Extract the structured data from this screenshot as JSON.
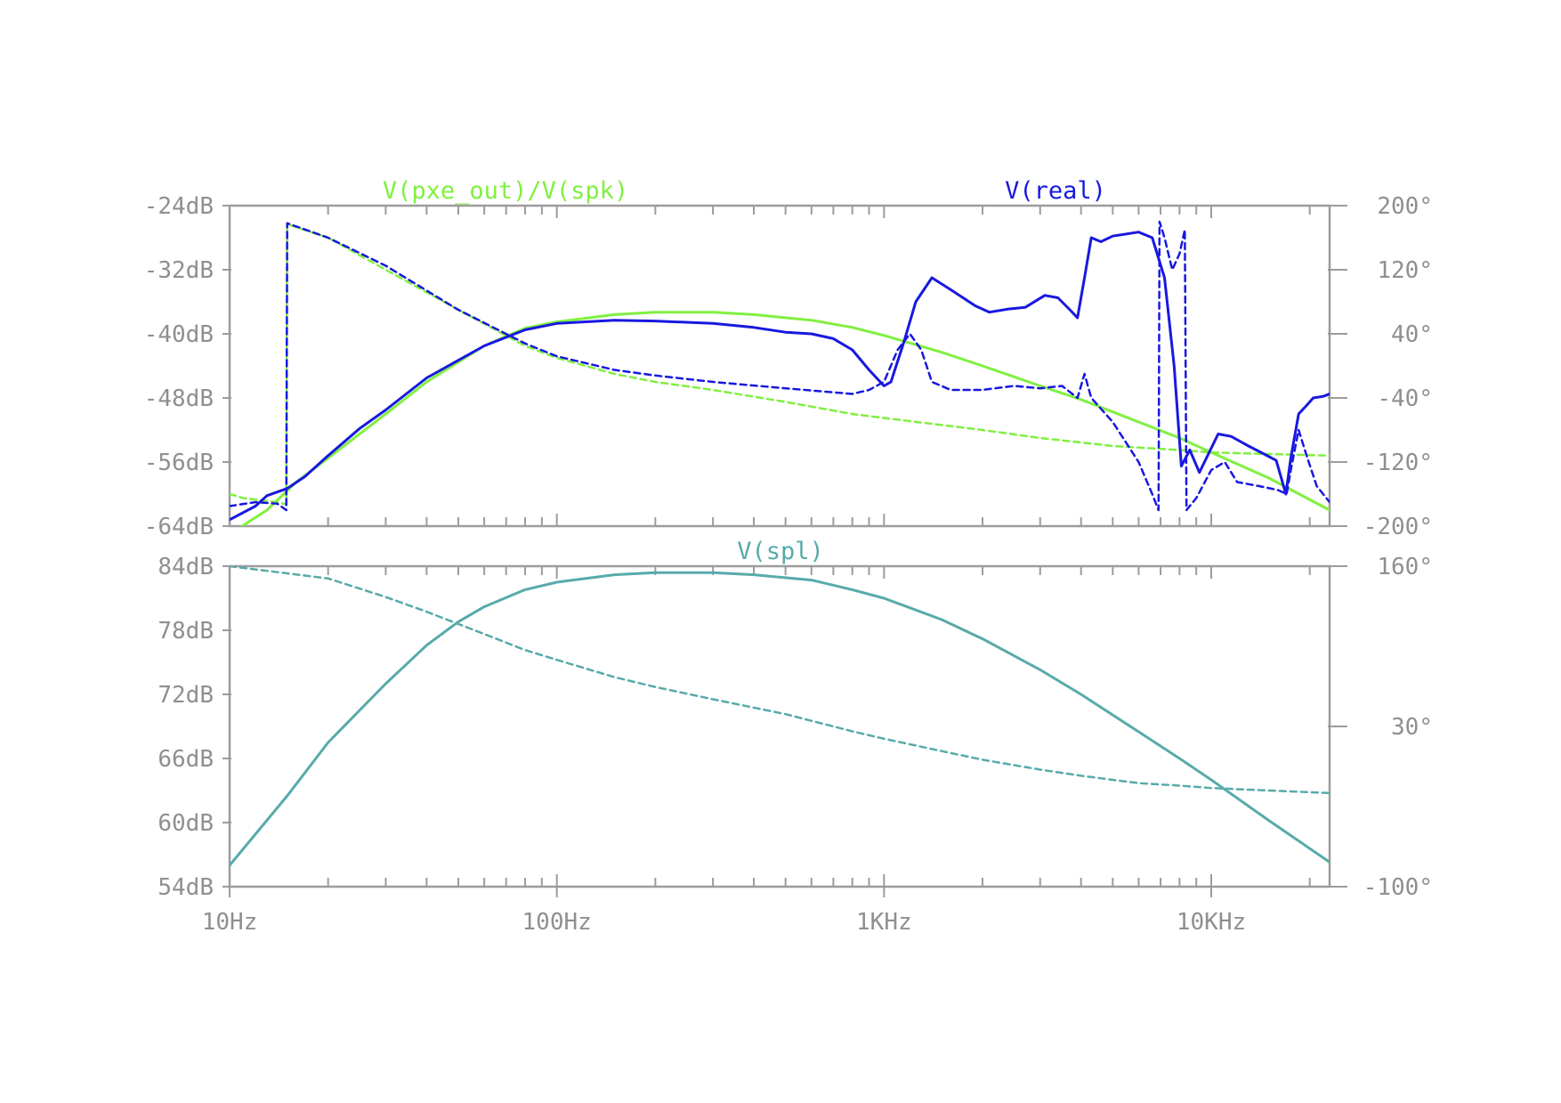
{
  "chart_data": [
    {
      "type": "line",
      "x_scale": "log",
      "xlim": [
        10,
        23000
      ],
      "x_ticks": [
        {
          "value": 10,
          "label": "10Hz"
        },
        {
          "value": 100,
          "label": "100Hz"
        },
        {
          "value": 1000,
          "label": "1KHz"
        },
        {
          "value": 10000,
          "label": "10KHz"
        }
      ],
      "ylim_left": [
        -64,
        -24
      ],
      "y_ticks_left": [
        {
          "value": -24,
          "label": "-24dB"
        },
        {
          "value": -32,
          "label": "-32dB"
        },
        {
          "value": -40,
          "label": "-40dB"
        },
        {
          "value": -48,
          "label": "-48dB"
        },
        {
          "value": -56,
          "label": "-56dB"
        },
        {
          "value": -64,
          "label": "-64dB"
        }
      ],
      "ylim_right": [
        -200,
        200
      ],
      "y_ticks_right": [
        {
          "value": 200,
          "label": "200°"
        },
        {
          "value": 120,
          "label": "120°"
        },
        {
          "value": 40,
          "label": "40°"
        },
        {
          "value": -40,
          "label": "-40°"
        },
        {
          "value": -120,
          "label": "-120°"
        },
        {
          "value": -200,
          "label": "-200°"
        }
      ],
      "grid": false,
      "series": [
        {
          "name": "V(pxe_out)/V(spk)",
          "color": "#80f040",
          "legend_position": "top-left",
          "magnitude_db": [
            [
              10,
              -65
            ],
            [
              13,
              -62
            ],
            [
              16,
              -58.5
            ],
            [
              20,
              -55.5
            ],
            [
              30,
              -50
            ],
            [
              40,
              -46
            ],
            [
              60,
              -41.5
            ],
            [
              80,
              -39.3
            ],
            [
              100,
              -38.5
            ],
            [
              150,
              -37.6
            ],
            [
              200,
              -37.3
            ],
            [
              300,
              -37.3
            ],
            [
              400,
              -37.6
            ],
            [
              600,
              -38.3
            ],
            [
              800,
              -39.2
            ],
            [
              1000,
              -40.2
            ],
            [
              1500,
              -42.3
            ],
            [
              2000,
              -44
            ],
            [
              3000,
              -46.5
            ],
            [
              4000,
              -48.2
            ],
            [
              6000,
              -51
            ],
            [
              8000,
              -53
            ],
            [
              10000,
              -54.8
            ],
            [
              15000,
              -58
            ],
            [
              23000,
              -62
            ]
          ],
          "phase_deg": [
            [
              10,
              -160
            ],
            [
              11,
              -165
            ],
            [
              14,
              -170
            ],
            [
              14.9,
              -173
            ],
            [
              15,
              177
            ],
            [
              20,
              160
            ],
            [
              30,
              120
            ],
            [
              50,
              70
            ],
            [
              80,
              25
            ],
            [
              100,
              10
            ],
            [
              150,
              -10
            ],
            [
              200,
              -20
            ],
            [
              300,
              -30
            ],
            [
              500,
              -45
            ],
            [
              800,
              -60
            ],
            [
              1000,
              -65
            ],
            [
              2000,
              -80
            ],
            [
              3000,
              -90
            ],
            [
              5000,
              -100
            ],
            [
              8000,
              -105
            ],
            [
              10000,
              -108
            ],
            [
              15000,
              -110
            ],
            [
              23000,
              -112
            ]
          ]
        },
        {
          "name": "V(real)",
          "color": "#1818e0",
          "legend_position": "top-right",
          "magnitude_db": [
            [
              10,
              -63.2
            ],
            [
              12,
              -61.5
            ],
            [
              13,
              -60.2
            ],
            [
              15,
              -59.3
            ],
            [
              17,
              -57.8
            ],
            [
              20,
              -55.2
            ],
            [
              25,
              -51.8
            ],
            [
              30,
              -49.5
            ],
            [
              40,
              -45.5
            ],
            [
              60,
              -41.5
            ],
            [
              80,
              -39.5
            ],
            [
              100,
              -38.7
            ],
            [
              150,
              -38.3
            ],
            [
              200,
              -38.4
            ],
            [
              300,
              -38.7
            ],
            [
              400,
              -39.2
            ],
            [
              500,
              -39.8
            ],
            [
              600,
              -40
            ],
            [
              700,
              -40.6
            ],
            [
              800,
              -42
            ],
            [
              900,
              -44.5
            ],
            [
              1000,
              -46.5
            ],
            [
              1050,
              -46
            ],
            [
              1150,
              -41
            ],
            [
              1250,
              -36
            ],
            [
              1400,
              -33
            ],
            [
              1600,
              -34.5
            ],
            [
              1900,
              -36.5
            ],
            [
              2100,
              -37.3
            ],
            [
              2400,
              -36.9
            ],
            [
              2700,
              -36.7
            ],
            [
              3100,
              -35.2
            ],
            [
              3400,
              -35.5
            ],
            [
              3700,
              -37
            ],
            [
              3900,
              -38
            ],
            [
              4100,
              -33
            ],
            [
              4300,
              -28
            ],
            [
              4600,
              -28.5
            ],
            [
              5000,
              -27.8
            ],
            [
              6000,
              -27.3
            ],
            [
              6600,
              -28
            ],
            [
              7200,
              -33
            ],
            [
              7700,
              -44
            ],
            [
              8100,
              -56.5
            ],
            [
              8600,
              -54.5
            ],
            [
              9200,
              -57.3
            ],
            [
              9800,
              -55
            ],
            [
              10500,
              -52.5
            ],
            [
              11500,
              -52.8
            ],
            [
              13000,
              -54
            ],
            [
              14500,
              -55
            ],
            [
              15800,
              -55.8
            ],
            [
              16500,
              -58.5
            ],
            [
              16900,
              -60
            ],
            [
              17500,
              -55.5
            ],
            [
              18500,
              -50
            ],
            [
              19500,
              -49
            ],
            [
              20500,
              -48
            ],
            [
              22000,
              -47.8
            ],
            [
              23000,
              -47.5
            ]
          ],
          "phase_deg": [
            [
              10,
              -175
            ],
            [
              12,
              -170
            ],
            [
              14,
              -172
            ],
            [
              14.9,
              -180
            ],
            [
              15,
              178
            ],
            [
              20,
              160
            ],
            [
              30,
              125
            ],
            [
              50,
              70
            ],
            [
              80,
              28
            ],
            [
              100,
              12
            ],
            [
              150,
              -5
            ],
            [
              200,
              -12
            ],
            [
              300,
              -20
            ],
            [
              500,
              -28
            ],
            [
              800,
              -35
            ],
            [
              900,
              -30
            ],
            [
              1000,
              -20
            ],
            [
              1100,
              20
            ],
            [
              1200,
              40
            ],
            [
              1300,
              20
            ],
            [
              1400,
              -20
            ],
            [
              1600,
              -30
            ],
            [
              2000,
              -30
            ],
            [
              2500,
              -25
            ],
            [
              3000,
              -28
            ],
            [
              3500,
              -25
            ],
            [
              3900,
              -40
            ],
            [
              4100,
              -10
            ],
            [
              4300,
              -40
            ],
            [
              5000,
              -70
            ],
            [
              6000,
              -120
            ],
            [
              6600,
              -160
            ],
            [
              6900,
              -180
            ],
            [
              6950,
              180
            ],
            [
              7200,
              160
            ],
            [
              7600,
              120
            ],
            [
              8000,
              140
            ],
            [
              8300,
              170
            ],
            [
              8400,
              -180
            ],
            [
              9000,
              -165
            ],
            [
              10000,
              -130
            ],
            [
              11000,
              -120
            ],
            [
              12000,
              -145
            ],
            [
              14000,
              -150
            ],
            [
              16000,
              -155
            ],
            [
              17000,
              -160
            ],
            [
              17500,
              -130
            ],
            [
              18500,
              -80
            ],
            [
              19500,
              -110
            ],
            [
              21000,
              -150
            ],
            [
              23000,
              -170
            ]
          ]
        }
      ]
    },
    {
      "type": "line",
      "x_scale": "log",
      "xlim": [
        10,
        23000
      ],
      "x_ticks": [
        {
          "value": 10,
          "label": "10Hz"
        },
        {
          "value": 100,
          "label": "100Hz"
        },
        {
          "value": 1000,
          "label": "1KHz"
        },
        {
          "value": 10000,
          "label": "10KHz"
        }
      ],
      "ylim_left": [
        54,
        84
      ],
      "y_ticks_left": [
        {
          "value": 84,
          "label": "84dB"
        },
        {
          "value": 78,
          "label": "78dB"
        },
        {
          "value": 72,
          "label": "72dB"
        },
        {
          "value": 66,
          "label": "66dB"
        },
        {
          "value": 60,
          "label": "60dB"
        },
        {
          "value": 54,
          "label": "54dB"
        }
      ],
      "ylim_right": [
        -100,
        160
      ],
      "y_ticks_right": [
        {
          "value": 160,
          "label": "160°"
        },
        {
          "value": 30,
          "label": "30°"
        },
        {
          "value": -100,
          "label": "-100°"
        }
      ],
      "grid": false,
      "series": [
        {
          "name": "V(spl)",
          "color": "#58aaaa",
          "legend_position": "top-center",
          "magnitude_db": [
            [
              10,
              56
            ],
            [
              15,
              62.5
            ],
            [
              20,
              67.5
            ],
            [
              30,
              73
            ],
            [
              40,
              76.6
            ],
            [
              50,
              78.8
            ],
            [
              60,
              80.2
            ],
            [
              80,
              81.8
            ],
            [
              100,
              82.5
            ],
            [
              150,
              83.2
            ],
            [
              200,
              83.4
            ],
            [
              300,
              83.4
            ],
            [
              400,
              83.2
            ],
            [
              600,
              82.7
            ],
            [
              800,
              81.8
            ],
            [
              1000,
              81
            ],
            [
              1500,
              79
            ],
            [
              2000,
              77.2
            ],
            [
              3000,
              74.3
            ],
            [
              4000,
              72
            ],
            [
              6000,
              68.5
            ],
            [
              8000,
              66
            ],
            [
              10000,
              64
            ],
            [
              15000,
              60.2
            ],
            [
              23000,
              56.3
            ]
          ],
          "phase_deg": [
            [
              10,
              160
            ],
            [
              20,
              150
            ],
            [
              30,
              135
            ],
            [
              40,
              123
            ],
            [
              60,
              105
            ],
            [
              80,
              92
            ],
            [
              100,
              84
            ],
            [
              150,
              70
            ],
            [
              200,
              62
            ],
            [
              300,
              52
            ],
            [
              500,
              40
            ],
            [
              800,
              26
            ],
            [
              1000,
              20
            ],
            [
              1500,
              10
            ],
            [
              2000,
              3
            ],
            [
              3000,
              -5
            ],
            [
              4000,
              -10
            ],
            [
              6000,
              -16
            ],
            [
              8000,
              -18
            ],
            [
              10000,
              -20
            ],
            [
              15000,
              -22
            ],
            [
              23000,
              -24
            ]
          ]
        }
      ]
    }
  ]
}
